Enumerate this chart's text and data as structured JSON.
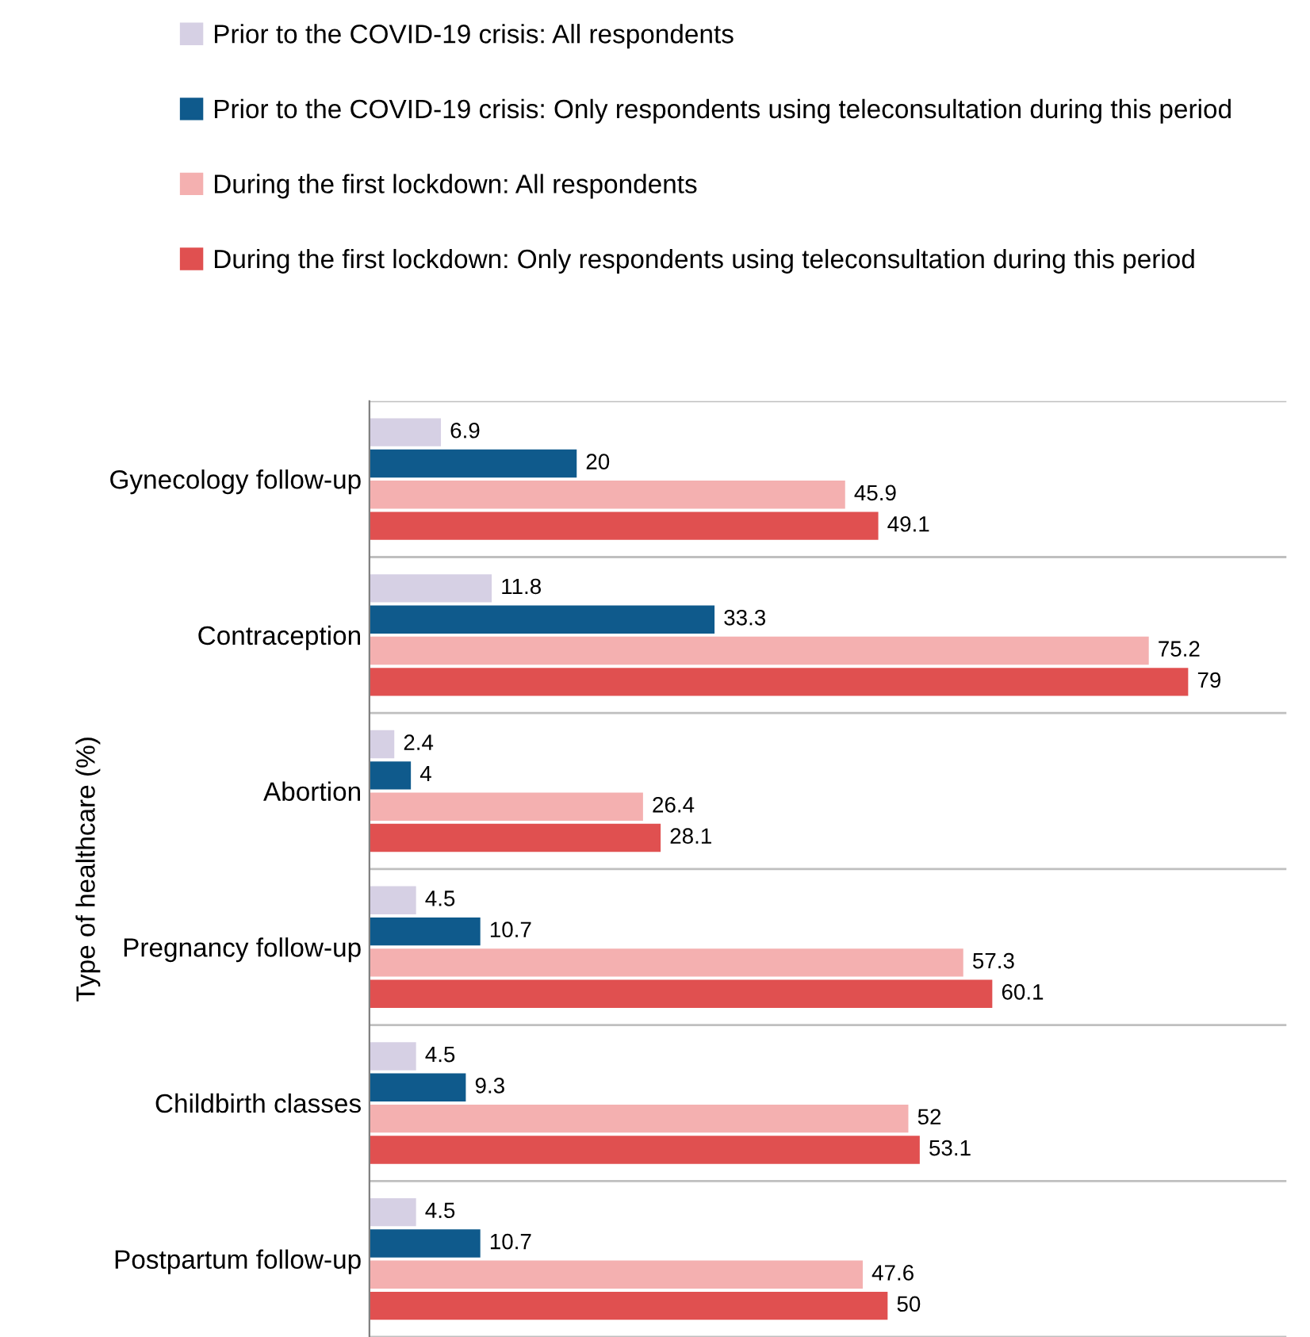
{
  "chart_data": {
    "type": "bar",
    "orientation": "horizontal",
    "ylabel": "Type of healthcare (%)",
    "categories": [
      "Gynecology follow-up",
      "Contraception",
      "Abortion",
      "Pregnancy follow-up",
      "Childbirth classes",
      "Postpartum follow-up"
    ],
    "series": [
      {
        "name": "Prior to the COVID-19 crisis: All respondents",
        "color": "#d6d0e4",
        "values": [
          6.9,
          11.8,
          2.4,
          4.5,
          4.5,
          4.5
        ]
      },
      {
        "name": "Prior to the COVID-19 crisis: Only respondents using teleconsultation during this period",
        "color": "#0f5a8c",
        "values": [
          20,
          33.3,
          4,
          10.7,
          9.3,
          10.7
        ]
      },
      {
        "name": "During the first lockdown: All respondents",
        "color": "#f4b0b0",
        "values": [
          45.9,
          75.2,
          26.4,
          57.3,
          52,
          47.6
        ]
      },
      {
        "name": "During the first lockdown: Only respondents using teleconsultation during this period",
        "color": "#e05050",
        "values": [
          49.1,
          79,
          28.1,
          60.1,
          53.1,
          50
        ]
      }
    ],
    "data_labels": true,
    "grid": "y",
    "legend": "top",
    "tick_labels": "y"
  }
}
